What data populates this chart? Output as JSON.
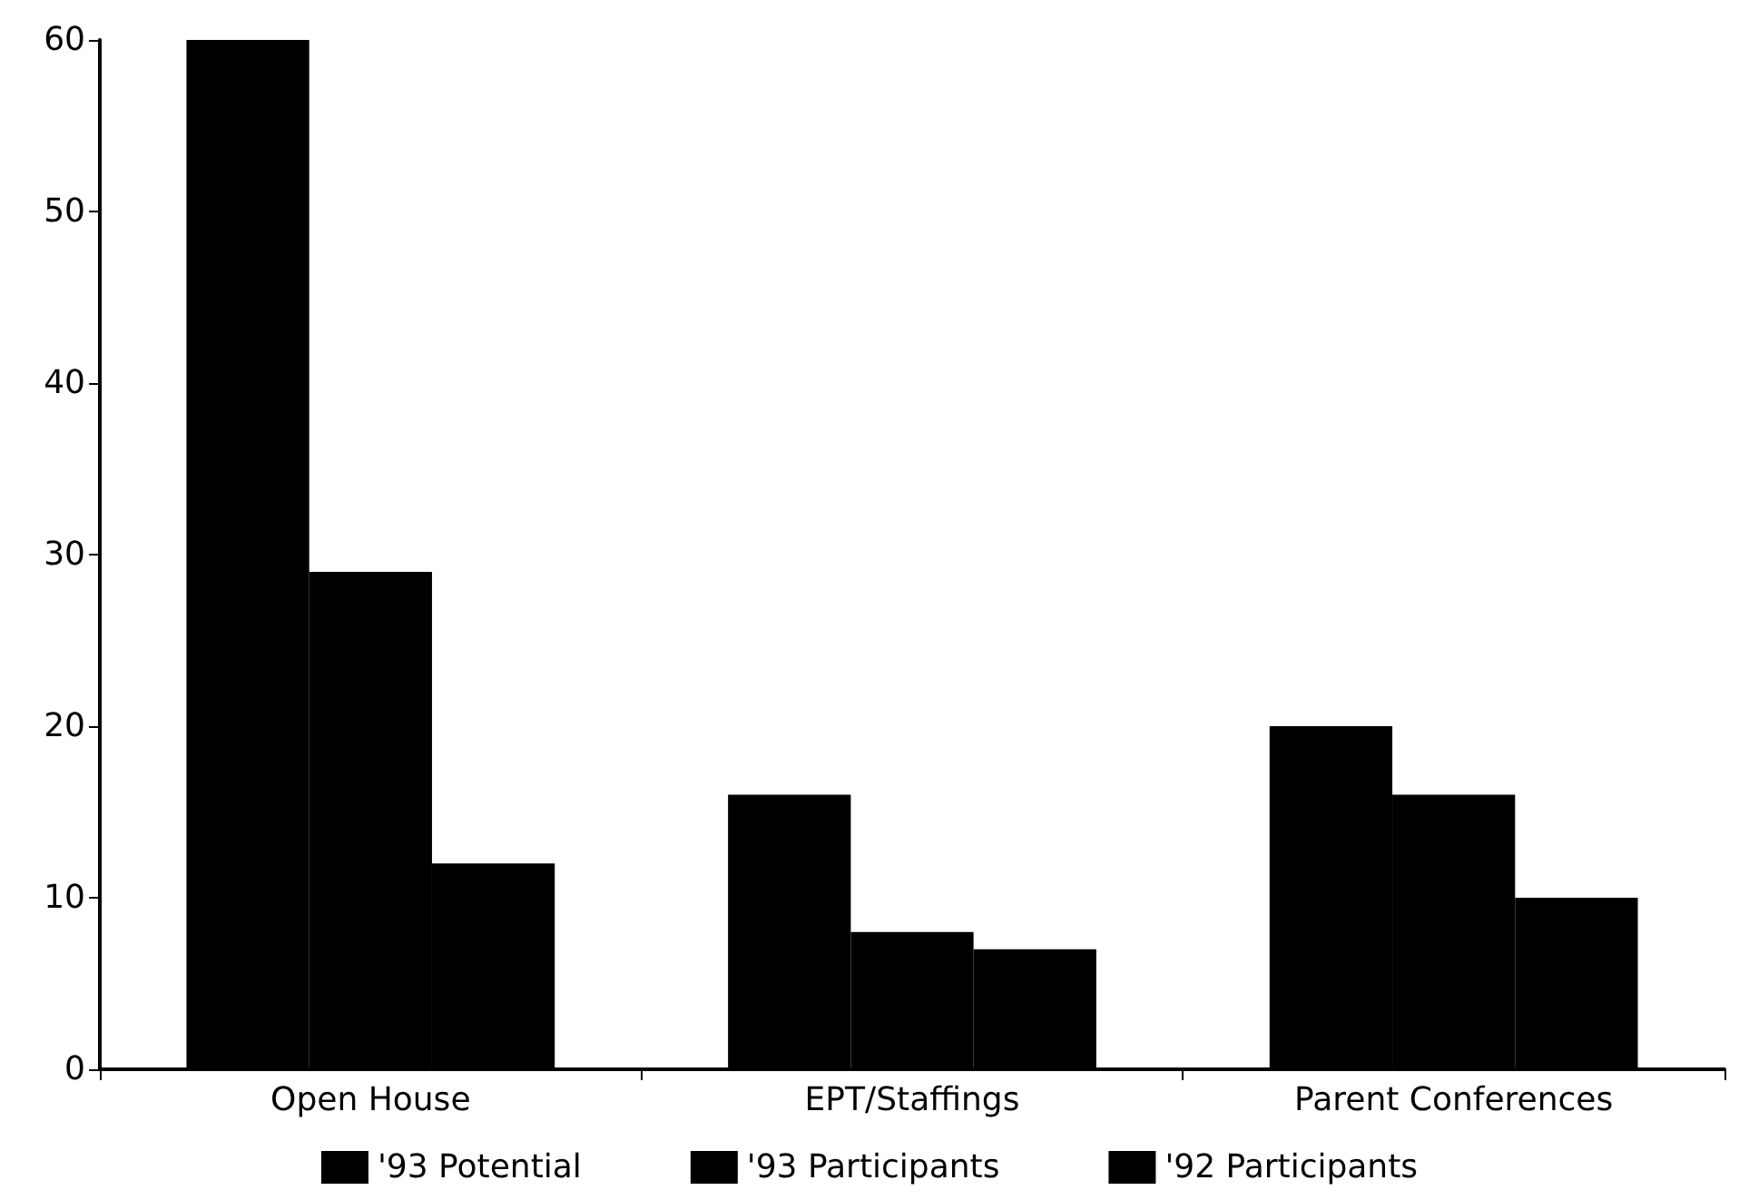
{
  "chart_data": {
    "type": "bar",
    "categories": [
      "Open House",
      "EPT/Staffings",
      "Parent Conferences"
    ],
    "series": [
      {
        "name": "'93 Potential",
        "color": "#000000",
        "values": [
          60,
          16,
          20
        ]
      },
      {
        "name": "'93 Participants",
        "color": "#000000",
        "values": [
          29,
          8,
          16
        ]
      },
      {
        "name": "'92 Participants",
        "color": "#000000",
        "values": [
          12,
          7,
          10
        ]
      }
    ],
    "ylim": [
      0,
      60
    ],
    "yticks": [
      0,
      10,
      20,
      30,
      40,
      50,
      60
    ],
    "grid": false,
    "legend": "bottom"
  }
}
